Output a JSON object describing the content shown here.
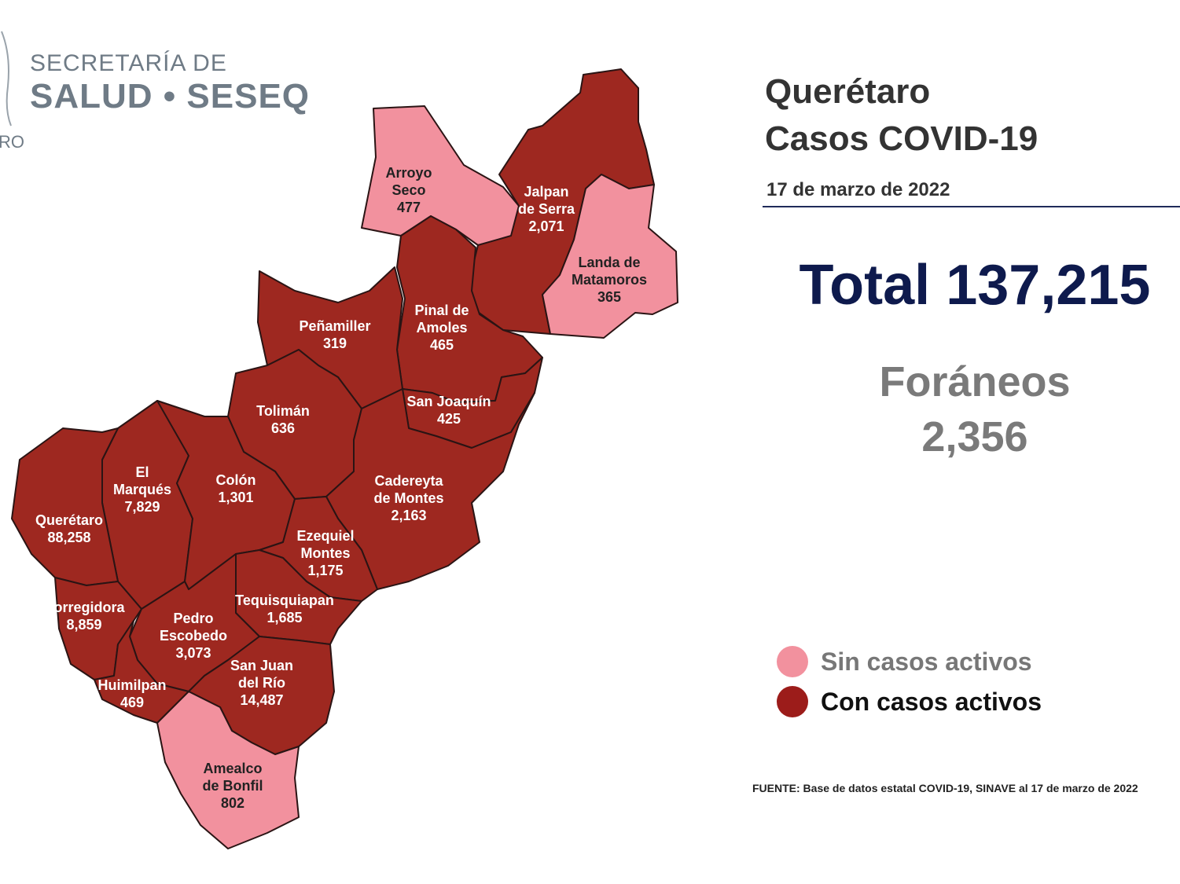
{
  "header": {
    "org_line1": "SECRETARÍA DE",
    "org_line2": "SALUD • SESEQ",
    "logo_fragment": "RO"
  },
  "title": {
    "line1": "Querétaro",
    "line2": "Casos COVID-19",
    "date": "17 de marzo de 2022"
  },
  "total": {
    "label": "Total 137,215"
  },
  "foraneos": {
    "label": "Foráneos",
    "value": "2,356"
  },
  "legend": [
    {
      "label": "Sin casos activos",
      "color": "#f2919e"
    },
    {
      "label": "Con casos activos",
      "color": "#9c1c1a"
    }
  ],
  "colors": {
    "active": "#9e2820",
    "inactive": "#f2919e",
    "border": "#2a1414"
  },
  "municipalities": [
    {
      "name_lines": [
        "Arroyo",
        "Seco"
      ],
      "cases": "477",
      "status": "inactive"
    },
    {
      "name_lines": [
        "Jalpan",
        "de Serra"
      ],
      "cases": "2,071",
      "status": "active"
    },
    {
      "name_lines": [
        "Landa de",
        "Matamoros"
      ],
      "cases": "365",
      "status": "inactive"
    },
    {
      "name_lines": [
        "Pinal de",
        "Amoles"
      ],
      "cases": "465",
      "status": "active"
    },
    {
      "name_lines": [
        "Peñamiller"
      ],
      "cases": "319",
      "status": "active"
    },
    {
      "name_lines": [
        "San Joaquín"
      ],
      "cases": "425",
      "status": "active"
    },
    {
      "name_lines": [
        "Tolimán"
      ],
      "cases": "636",
      "status": "active"
    },
    {
      "name_lines": [
        "Cadereyta",
        "de Montes"
      ],
      "cases": "2,163",
      "status": "active"
    },
    {
      "name_lines": [
        "El",
        "Marqués"
      ],
      "cases": "7,829",
      "status": "active"
    },
    {
      "name_lines": [
        "Colón"
      ],
      "cases": "1,301",
      "status": "active"
    },
    {
      "name_lines": [
        "Querétaro"
      ],
      "cases": "88,258",
      "status": "active"
    },
    {
      "name_lines": [
        "Ezequiel",
        "Montes"
      ],
      "cases": "1,175",
      "status": "active"
    },
    {
      "name_lines": [
        "Corregidora"
      ],
      "cases": "8,859",
      "status": "active"
    },
    {
      "name_lines": [
        "Tequisquiapan"
      ],
      "cases": "1,685",
      "status": "active"
    },
    {
      "name_lines": [
        "Pedro",
        "Escobedo"
      ],
      "cases": "3,073",
      "status": "active"
    },
    {
      "name_lines": [
        "San Juan",
        "del Río"
      ],
      "cases": "14,487",
      "status": "active"
    },
    {
      "name_lines": [
        "Huimilpan"
      ],
      "cases": "469",
      "status": "active"
    },
    {
      "name_lines": [
        "Amealco",
        "de Bonfil"
      ],
      "cases": "802",
      "status": "inactive"
    }
  ],
  "source": "FUENTE: Base de datos estatal COVID-19, SINAVE al 17 de marzo de 2022"
}
